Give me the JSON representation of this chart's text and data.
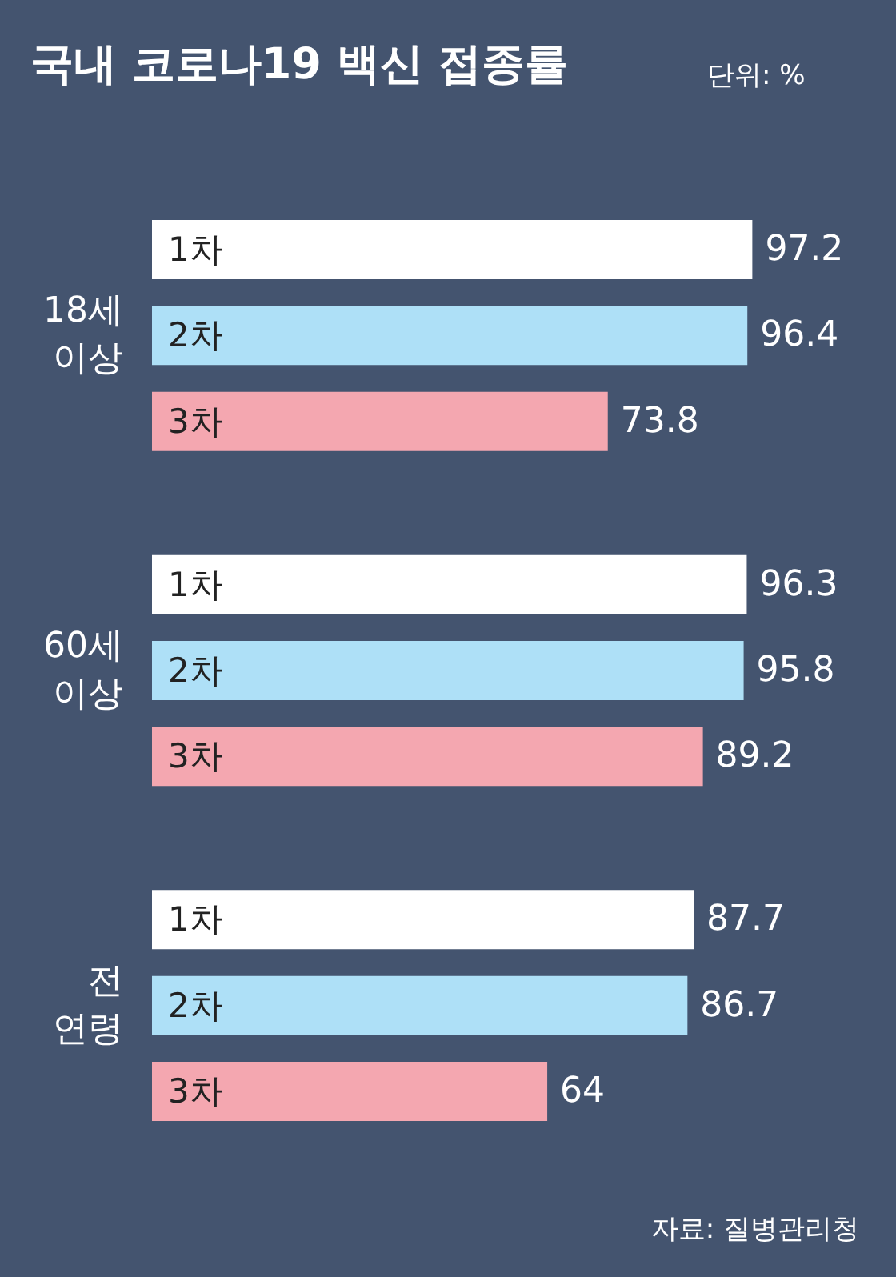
{
  "chart_data": {
    "type": "bar",
    "orientation": "horizontal",
    "title": "국내 코로나19 백신 접종률",
    "subtitle": "단위: %",
    "annotations": [
      "자료: 질병관리청"
    ],
    "categories": [
      "18세 이상",
      "60세 이상",
      "전 연령"
    ],
    "series": [
      {
        "name": "1차",
        "color": "#ffffff",
        "values": [
          97.2,
          96.3,
          87.7
        ]
      },
      {
        "name": "2차",
        "color": "#aee0f7",
        "values": [
          96.4,
          95.8,
          86.7
        ]
      },
      {
        "name": "3차",
        "color": "#f4a7b0",
        "values": [
          73.8,
          89.2,
          64
        ]
      }
    ],
    "data_labels": true,
    "tick_labels": "y"
  }
}
